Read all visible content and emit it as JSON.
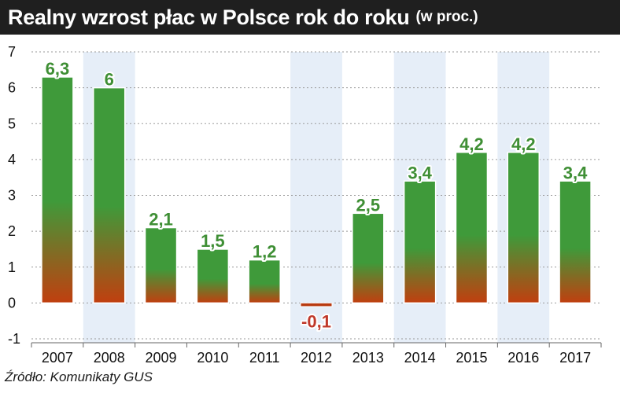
{
  "header": {
    "title": "Realny wzrost płac w Polsce rok do roku",
    "subtitle": "(w proc.)"
  },
  "source": "Źródło: Komunikaty GUS",
  "chart_data": {
    "type": "bar",
    "title": "Realny wzrost płac w Polsce rok do roku",
    "subtitle": "(w proc.)",
    "categories": [
      "2007",
      "2008",
      "2009",
      "2010",
      "2011",
      "2012",
      "2013",
      "2014",
      "2015",
      "2016",
      "2017"
    ],
    "values": [
      6.3,
      6,
      2.1,
      1.5,
      1.2,
      -0.1,
      2.5,
      3.4,
      4.2,
      4.2,
      3.4
    ],
    "value_labels": [
      "6,3",
      "6",
      "2,1",
      "1,5",
      "1,2",
      "-0,1",
      "2,5",
      "3,4",
      "4,2",
      "4,2",
      "3,4"
    ],
    "yticks": [
      "-1",
      "0",
      "1",
      "2",
      "3",
      "4",
      "5",
      "6",
      "7"
    ],
    "ylim": [
      -1,
      7
    ],
    "xlabel": "",
    "ylabel": "",
    "grid": true,
    "highlighted_columns": [
      "2008",
      "2012",
      "2014",
      "2016"
    ],
    "colors": {
      "bar_top": "#3f9a3a",
      "bar_bottom": "#c13f0f",
      "negative_bar": "#b83a10",
      "positive_label": "#3f8f35",
      "negative_label": "#c0392b",
      "column_band": "#e6eef8",
      "title_bg": "#1f1f1f"
    }
  }
}
